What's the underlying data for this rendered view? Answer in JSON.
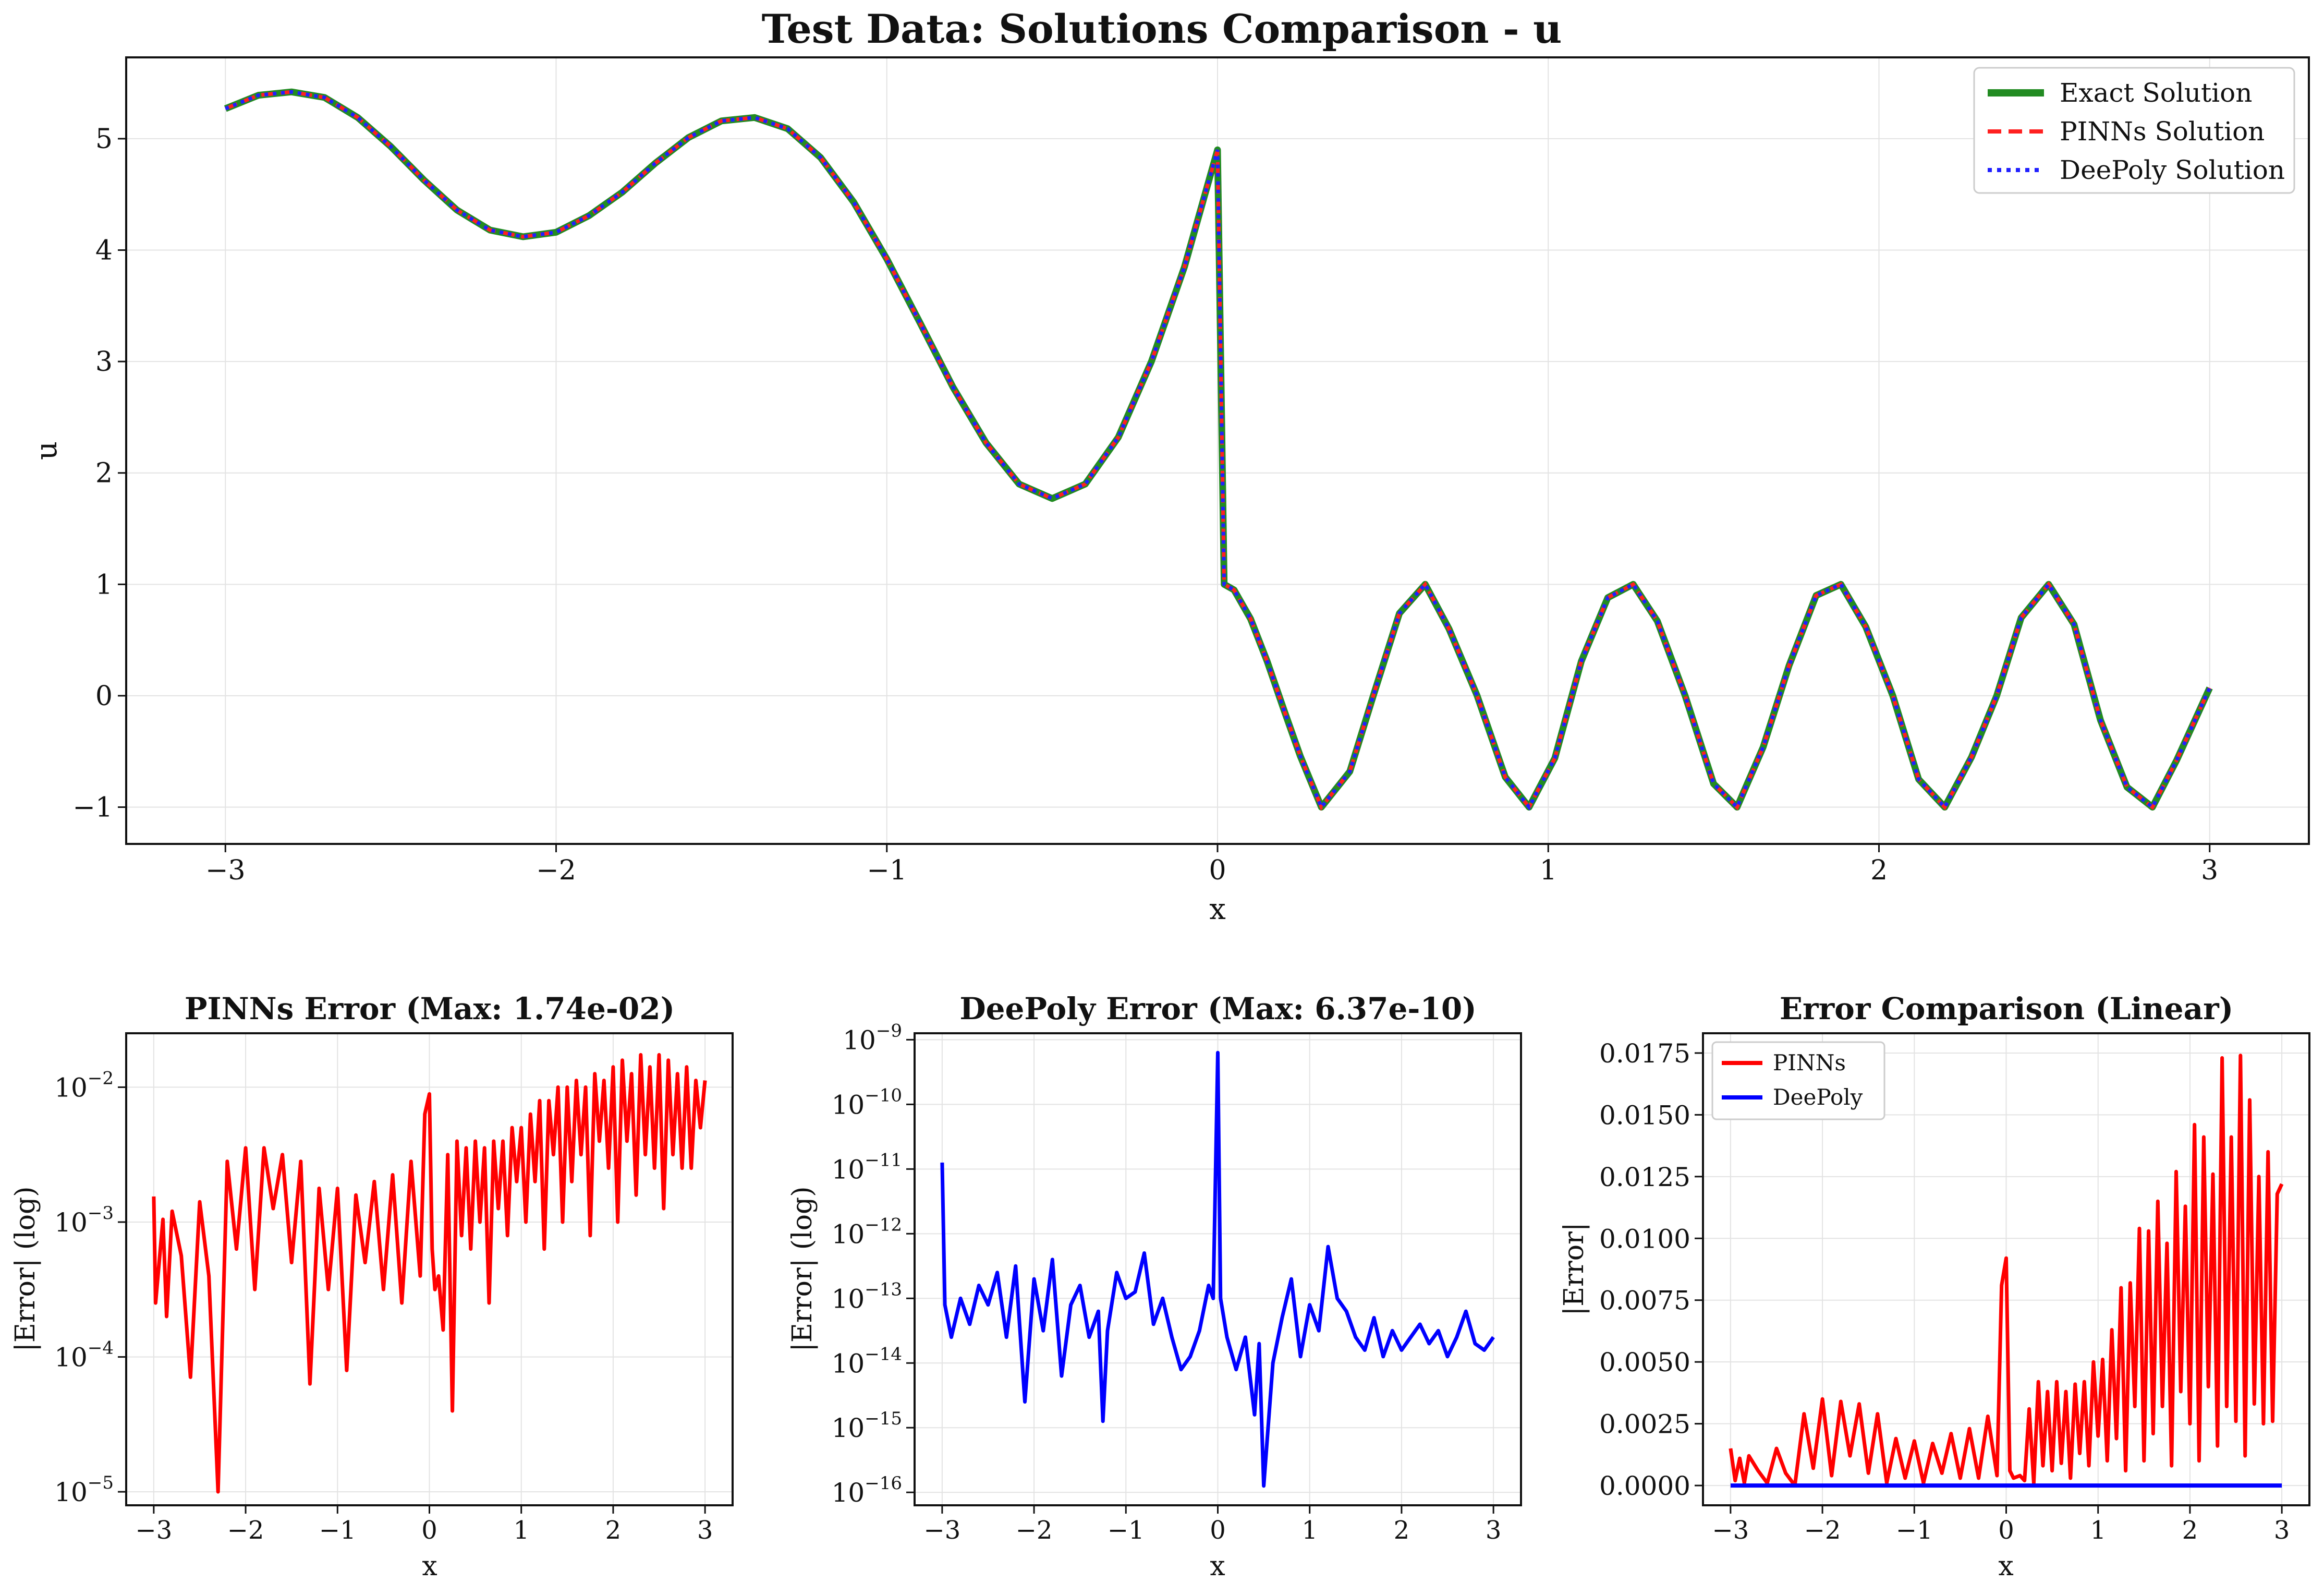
{
  "colors": {
    "exact": "#228b22",
    "pinns": "#ff2020",
    "deepoly": "#2020ff",
    "pinns_err": "#ff0000",
    "deepoly_err": "#0000ff"
  },
  "chart_data": [
    {
      "type": "line",
      "title": "Test Data: Solutions Comparison - u",
      "xlabel": "x",
      "ylabel": "u",
      "xlim": [
        -3.3,
        3.3
      ],
      "ylim": [
        -1.33,
        5.73
      ],
      "xticks": [
        "−3",
        "−2",
        "−1",
        "0",
        "1",
        "2",
        "3"
      ],
      "yticks": [
        "−1",
        "0",
        "1",
        "2",
        "3",
        "4",
        "5"
      ],
      "grid": true,
      "legend_position": "top-right",
      "series": [
        {
          "name": "Exact Solution",
          "style": "solid",
          "x": [
            -3.0,
            -2.9,
            -2.8,
            -2.7,
            -2.6,
            -2.5,
            -2.4,
            -2.3,
            -2.2,
            -2.1,
            -2.0,
            -1.9,
            -1.8,
            -1.7,
            -1.6,
            -1.5,
            -1.4,
            -1.3,
            -1.2,
            -1.1,
            -1.0,
            -0.9,
            -0.8,
            -0.7,
            -0.6,
            -0.5,
            -0.4,
            -0.3,
            -0.2,
            -0.1,
            0.0,
            0.02,
            0.05,
            0.1,
            0.15,
            0.2,
            0.25,
            0.314,
            0.4,
            0.471,
            0.55,
            0.628,
            0.7,
            0.785,
            0.87,
            0.942,
            1.02,
            1.1,
            1.18,
            1.257,
            1.33,
            1.414,
            1.5,
            1.571,
            1.65,
            1.728,
            1.81,
            1.885,
            1.96,
            2.042,
            2.12,
            2.199,
            2.28,
            2.356,
            2.43,
            2.513,
            2.59,
            2.67,
            2.75,
            2.827,
            2.9,
            3.0
          ],
          "y": [
            5.27,
            5.39,
            5.42,
            5.37,
            5.19,
            4.93,
            4.63,
            4.36,
            4.18,
            4.12,
            4.16,
            4.31,
            4.52,
            4.78,
            5.01,
            5.16,
            5.19,
            5.09,
            4.83,
            4.43,
            3.92,
            3.35,
            2.77,
            2.27,
            1.9,
            1.77,
            1.9,
            2.32,
            3.0,
            3.85,
            4.9,
            1.0,
            0.95,
            0.69,
            0.31,
            -0.12,
            -0.54,
            -1.0,
            -0.68,
            0.0,
            0.74,
            1.0,
            0.6,
            0.0,
            -0.73,
            -1.0,
            -0.56,
            0.31,
            0.88,
            1.0,
            0.67,
            0.0,
            -0.79,
            -1.0,
            -0.46,
            0.27,
            0.9,
            1.0,
            0.62,
            0.0,
            -0.75,
            -1.0,
            -0.55,
            0.0,
            0.7,
            1.0,
            0.64,
            -0.22,
            -0.82,
            -1.0,
            -0.58,
            0.07
          ]
        },
        {
          "name": "PINNs Solution",
          "style": "dashed",
          "same_as": "Exact Solution"
        },
        {
          "name": "DeePoly Solution",
          "style": "dotted",
          "same_as": "Exact Solution"
        }
      ]
    },
    {
      "type": "line",
      "title": "PINNs Error (Max: 1.74e-02)",
      "xlabel": "x",
      "ylabel": "|Error| (log)",
      "yscale": "log",
      "xlim": [
        -3.3,
        3.3
      ],
      "ylim_exp": [
        -5.1,
        -1.6
      ],
      "xticks": [
        "−3",
        "−2",
        "−1",
        "0",
        "1",
        "2",
        "3"
      ],
      "yticks": [
        {
          "base": "10",
          "exp": "−5",
          "value": -5
        },
        {
          "base": "10",
          "exp": "−4",
          "value": -4
        },
        {
          "base": "10",
          "exp": "−3",
          "value": -3
        },
        {
          "base": "10",
          "exp": "−2",
          "value": -2
        }
      ],
      "grid": true,
      "series": [
        {
          "name": "PINNs",
          "x": [
            -3.0,
            -2.98,
            -2.9,
            -2.86,
            -2.8,
            -2.7,
            -2.6,
            -2.5,
            -2.4,
            -2.3,
            -2.2,
            -2.1,
            -2.0,
            -1.9,
            -1.8,
            -1.7,
            -1.6,
            -1.5,
            -1.4,
            -1.3,
            -1.2,
            -1.1,
            -1.0,
            -0.9,
            -0.8,
            -0.7,
            -0.6,
            -0.5,
            -0.4,
            -0.3,
            -0.2,
            -0.1,
            -0.05,
            0.0,
            0.03,
            0.06,
            0.1,
            0.15,
            0.2,
            0.25,
            0.3,
            0.35,
            0.4,
            0.45,
            0.5,
            0.55,
            0.6,
            0.65,
            0.7,
            0.75,
            0.8,
            0.85,
            0.9,
            0.95,
            1.0,
            1.05,
            1.1,
            1.15,
            1.2,
            1.25,
            1.3,
            1.35,
            1.4,
            1.45,
            1.5,
            1.55,
            1.6,
            1.65,
            1.7,
            1.75,
            1.8,
            1.85,
            1.9,
            1.95,
            2.0,
            2.05,
            2.1,
            2.15,
            2.2,
            2.25,
            2.3,
            2.35,
            2.4,
            2.45,
            2.5,
            2.55,
            2.6,
            2.65,
            2.7,
            2.75,
            2.8,
            2.85,
            2.9,
            2.95,
            3.0
          ],
          "y_exp": [
            -2.81,
            -3.6,
            -2.98,
            -3.7,
            -2.92,
            -3.25,
            -4.15,
            -2.85,
            -3.4,
            -5.0,
            -2.55,
            -3.2,
            -2.45,
            -3.5,
            -2.45,
            -2.9,
            -2.5,
            -3.3,
            -2.55,
            -4.2,
            -2.75,
            -3.5,
            -2.75,
            -4.1,
            -2.8,
            -3.3,
            -2.7,
            -3.5,
            -2.65,
            -3.6,
            -2.55,
            -3.4,
            -2.2,
            -2.05,
            -3.2,
            -3.5,
            -3.4,
            -3.8,
            -2.5,
            -4.4,
            -2.4,
            -3.1,
            -2.45,
            -3.2,
            -2.4,
            -3.0,
            -2.45,
            -3.6,
            -2.4,
            -2.9,
            -2.4,
            -3.1,
            -2.3,
            -2.7,
            -2.3,
            -3.0,
            -2.2,
            -2.7,
            -2.1,
            -3.2,
            -2.1,
            -2.5,
            -2.0,
            -3.0,
            -2.0,
            -2.7,
            -1.95,
            -2.5,
            -2.0,
            -3.1,
            -1.9,
            -2.4,
            -1.95,
            -2.6,
            -1.85,
            -3.0,
            -1.8,
            -2.4,
            -1.9,
            -2.8,
            -1.76,
            -2.5,
            -1.85,
            -2.6,
            -1.76,
            -2.9,
            -1.8,
            -2.5,
            -1.9,
            -2.6,
            -1.85,
            -2.6,
            -1.95,
            -2.3,
            -1.95
          ]
        }
      ]
    },
    {
      "type": "line",
      "title": "DeePoly Error (Max: 6.37e-10)",
      "xlabel": "x",
      "ylabel": "|Error| (log)",
      "yscale": "log",
      "xlim": [
        -3.3,
        3.3
      ],
      "ylim_exp": [
        -16.2,
        -8.9
      ],
      "xticks": [
        "−3",
        "−2",
        "−1",
        "0",
        "1",
        "2",
        "3"
      ],
      "yticks": [
        {
          "base": "10",
          "exp": "−16",
          "value": -16
        },
        {
          "base": "10",
          "exp": "−15",
          "value": -15
        },
        {
          "base": "10",
          "exp": "−14",
          "value": -14
        },
        {
          "base": "10",
          "exp": "−13",
          "value": -13
        },
        {
          "base": "10",
          "exp": "−12",
          "value": -12
        },
        {
          "base": "10",
          "exp": "−11",
          "value": -11
        },
        {
          "base": "10",
          "exp": "−10",
          "value": -10
        },
        {
          "base": "10",
          "exp": "−9",
          "value": -9
        }
      ],
      "grid": true,
      "series": [
        {
          "name": "DeePoly",
          "x": [
            -3.0,
            -2.97,
            -2.9,
            -2.8,
            -2.7,
            -2.6,
            -2.5,
            -2.4,
            -2.3,
            -2.2,
            -2.1,
            -2.0,
            -1.9,
            -1.8,
            -1.7,
            -1.6,
            -1.5,
            -1.4,
            -1.3,
            -1.25,
            -1.2,
            -1.1,
            -1.0,
            -0.9,
            -0.8,
            -0.7,
            -0.6,
            -0.5,
            -0.4,
            -0.3,
            -0.2,
            -0.1,
            -0.05,
            0.0,
            0.03,
            0.1,
            0.2,
            0.3,
            0.4,
            0.45,
            0.5,
            0.6,
            0.7,
            0.8,
            0.9,
            1.0,
            1.1,
            1.2,
            1.3,
            1.4,
            1.5,
            1.6,
            1.7,
            1.8,
            1.9,
            2.0,
            2.1,
            2.2,
            2.3,
            2.4,
            2.5,
            2.6,
            2.7,
            2.8,
            2.9,
            3.0
          ],
          "y_exp": [
            -10.9,
            -13.1,
            -13.6,
            -13.0,
            -13.4,
            -12.8,
            -13.1,
            -12.6,
            -13.6,
            -12.5,
            -14.6,
            -12.7,
            -13.5,
            -12.4,
            -14.2,
            -13.1,
            -12.8,
            -13.6,
            -13.2,
            -14.9,
            -13.5,
            -12.6,
            -13.0,
            -12.9,
            -12.3,
            -13.4,
            -13.0,
            -13.6,
            -14.1,
            -13.9,
            -13.5,
            -12.8,
            -13.0,
            -9.2,
            -13.0,
            -13.6,
            -14.1,
            -13.6,
            -14.8,
            -13.7,
            -15.9,
            -14.0,
            -13.3,
            -12.7,
            -13.9,
            -13.1,
            -13.5,
            -12.2,
            -13.0,
            -13.2,
            -13.6,
            -13.8,
            -13.3,
            -13.9,
            -13.5,
            -13.8,
            -13.6,
            -13.4,
            -13.7,
            -13.5,
            -13.9,
            -13.6,
            -13.2,
            -13.7,
            -13.8,
            -13.6
          ]
        }
      ]
    },
    {
      "type": "line",
      "title": "Error Comparison (Linear)",
      "xlabel": "x",
      "ylabel": "|Error|",
      "xlim": [
        -3.3,
        3.3
      ],
      "ylim": [
        -0.0008,
        0.0183
      ],
      "xticks": [
        "−3",
        "−2",
        "−1",
        "0",
        "1",
        "2",
        "3"
      ],
      "yticks": [
        "0.0000",
        "0.0025",
        "0.0050",
        "0.0075",
        "0.0100",
        "0.0125",
        "0.0150",
        "0.0175"
      ],
      "grid": true,
      "legend_position": "top-left",
      "series": [
        {
          "name": "PINNs",
          "x": [
            -3.0,
            -2.95,
            -2.9,
            -2.85,
            -2.8,
            -2.7,
            -2.6,
            -2.5,
            -2.4,
            -2.3,
            -2.2,
            -2.1,
            -2.0,
            -1.9,
            -1.8,
            -1.7,
            -1.6,
            -1.5,
            -1.4,
            -1.3,
            -1.2,
            -1.1,
            -1.0,
            -0.9,
            -0.8,
            -0.7,
            -0.6,
            -0.5,
            -0.4,
            -0.3,
            -0.2,
            -0.1,
            -0.05,
            0.0,
            0.04,
            0.08,
            0.15,
            0.2,
            0.25,
            0.3,
            0.35,
            0.4,
            0.45,
            0.5,
            0.55,
            0.6,
            0.65,
            0.7,
            0.75,
            0.8,
            0.85,
            0.9,
            0.95,
            1.0,
            1.05,
            1.1,
            1.15,
            1.2,
            1.25,
            1.3,
            1.35,
            1.4,
            1.45,
            1.5,
            1.55,
            1.6,
            1.65,
            1.7,
            1.75,
            1.8,
            1.85,
            1.9,
            1.95,
            2.0,
            2.05,
            2.1,
            2.15,
            2.2,
            2.25,
            2.3,
            2.35,
            2.4,
            2.45,
            2.5,
            2.55,
            2.6,
            2.65,
            2.7,
            2.75,
            2.8,
            2.85,
            2.9,
            2.95,
            3.0
          ],
          "y": [
            0.0015,
            0.0002,
            0.0011,
            0.0001,
            0.0012,
            0.0006,
            0.0001,
            0.0015,
            0.0005,
            0.0,
            0.0029,
            0.0007,
            0.0035,
            0.0004,
            0.0034,
            0.0012,
            0.0033,
            0.0005,
            0.0029,
            0.0001,
            0.0019,
            0.0003,
            0.0018,
            0.0001,
            0.0017,
            0.0005,
            0.0021,
            0.0003,
            0.0023,
            0.0003,
            0.0028,
            0.0004,
            0.0081,
            0.0092,
            0.0006,
            0.0003,
            0.0004,
            0.0002,
            0.0031,
            0.0001,
            0.0042,
            0.0008,
            0.0038,
            0.0006,
            0.0042,
            0.0009,
            0.0038,
            0.0003,
            0.0041,
            0.0013,
            0.0042,
            0.0008,
            0.005,
            0.002,
            0.0051,
            0.001,
            0.0063,
            0.0019,
            0.008,
            0.0006,
            0.0082,
            0.0032,
            0.0104,
            0.001,
            0.0103,
            0.0021,
            0.0115,
            0.0032,
            0.0098,
            0.0008,
            0.0127,
            0.0038,
            0.0113,
            0.0025,
            0.0146,
            0.001,
            0.0141,
            0.004,
            0.0126,
            0.0016,
            0.0173,
            0.0032,
            0.0141,
            0.0026,
            0.0174,
            0.0012,
            0.0156,
            0.0033,
            0.0125,
            0.0025,
            0.0135,
            0.0026,
            0.0118,
            0.0122
          ]
        },
        {
          "name": "DeePoly",
          "x": [
            -3.0,
            3.0
          ],
          "y": [
            0.0,
            0.0
          ]
        }
      ]
    }
  ]
}
